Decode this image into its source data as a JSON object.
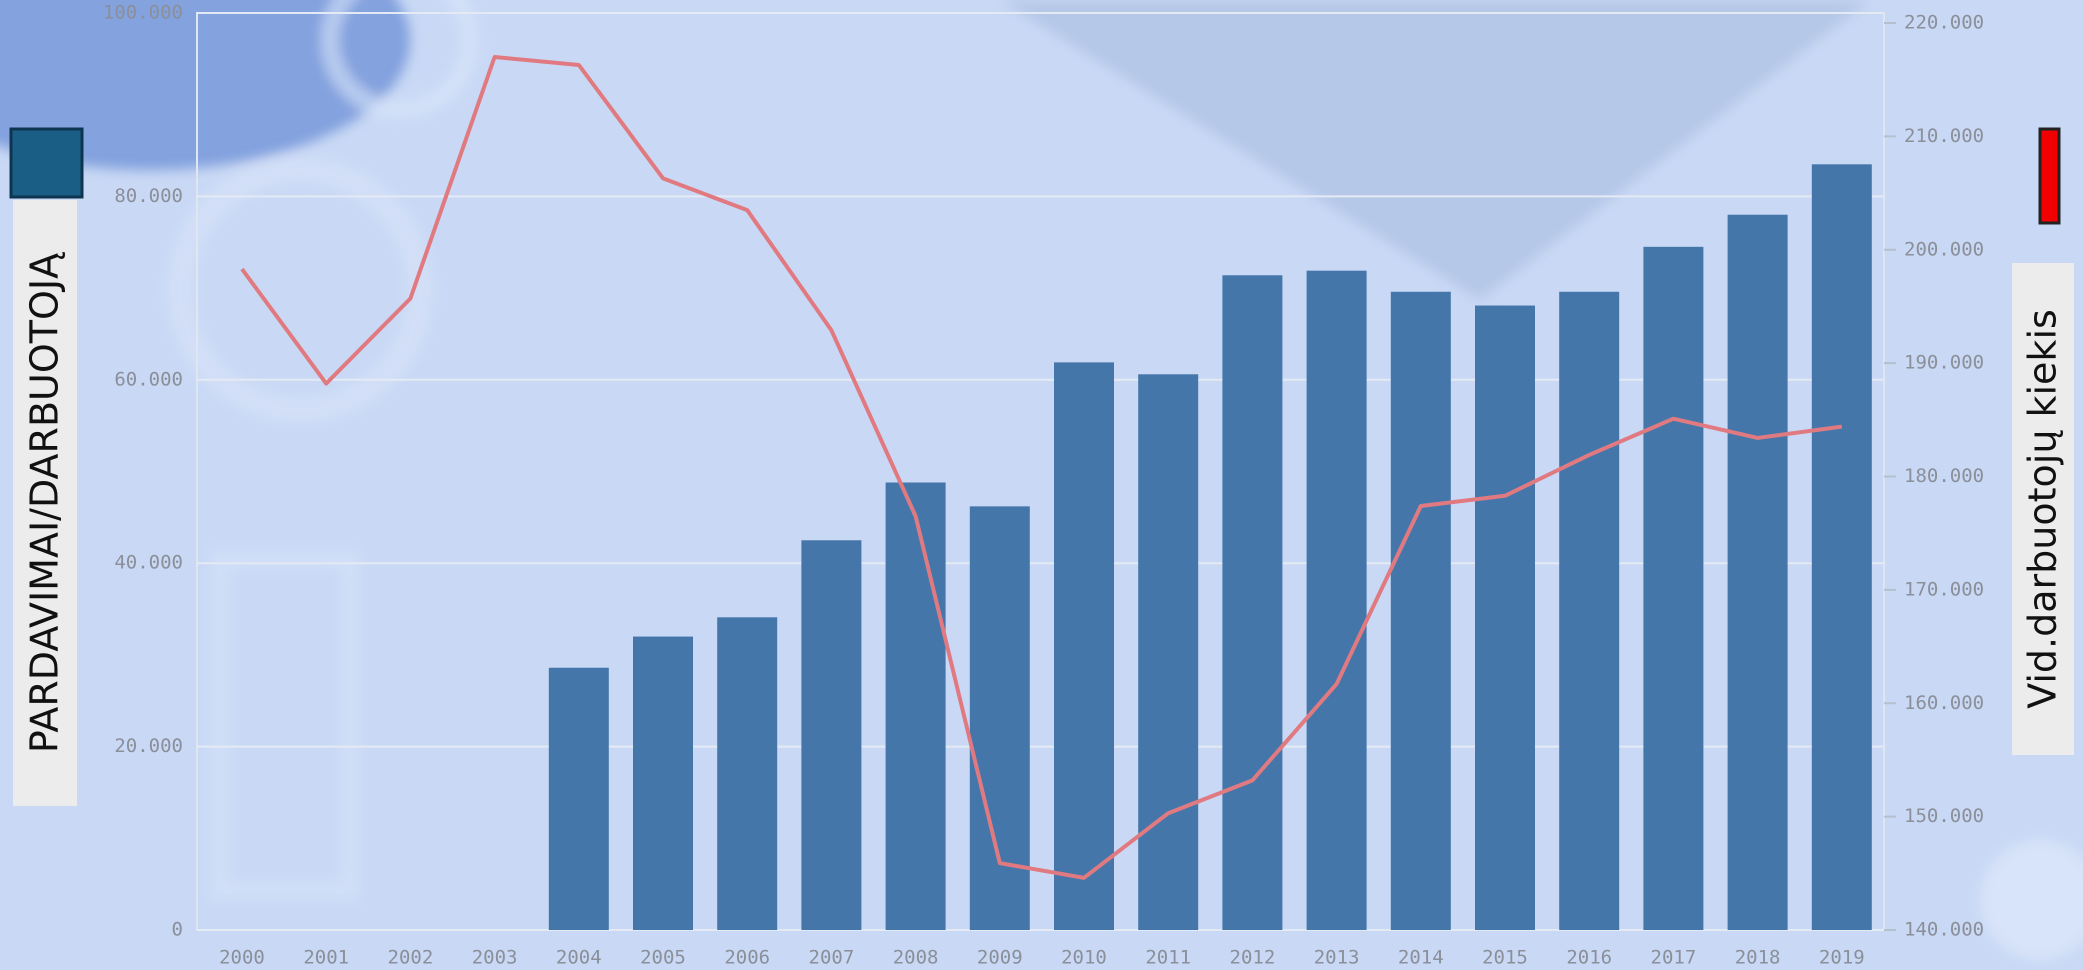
{
  "chart_data": {
    "type": "bar-line",
    "y_label": "PARDAVIMAI/DARBUOTOJĄ",
    "y2_label": "Vid.darbuotojų kiekis",
    "categories": [
      "2000",
      "2001",
      "2002",
      "2003",
      "2004",
      "2005",
      "2006",
      "2007",
      "2008",
      "2009",
      "2010",
      "2011",
      "2012",
      "2013",
      "2014",
      "2015",
      "2016",
      "2017",
      "2018",
      "2019"
    ],
    "series": [
      {
        "type": "bar",
        "color": "#4476aa",
        "values": [
          null,
          null,
          null,
          null,
          28600,
          32000,
          34100,
          42500,
          48800,
          46200,
          61900,
          60600,
          71400,
          71900,
          69600,
          68100,
          69600,
          74500,
          78000,
          83500
        ]
      },
      {
        "type": "line",
        "color": "#e07a80",
        "axis": "y2",
        "values": [
          198300,
          188200,
          195700,
          217000,
          216300,
          206300,
          203500,
          192900,
          176500,
          145900,
          144600,
          150300,
          153200,
          161700,
          177400,
          178300,
          181900,
          185100,
          183400,
          184400
        ]
      }
    ],
    "ylim": [
      0,
      100000
    ],
    "yticks": [
      0,
      {
        "value": 20000,
        "label": "20.000"
      },
      {
        "value": 40000,
        "label": "40.000"
      },
      {
        "value": 60000,
        "label": "60.000"
      },
      {
        "value": 80000,
        "label": "80.000"
      },
      {
        "value": 100000,
        "label": "100.000"
      }
    ],
    "y2lim": [
      140000,
      220000
    ],
    "y2ticks": [
      {
        "value": 140000,
        "label": "140.000"
      },
      {
        "value": 150000,
        "label": "150.000"
      },
      {
        "value": 160000,
        "label": "160.000"
      },
      {
        "value": 170000,
        "label": "170.000"
      },
      {
        "value": 180000,
        "label": "180.000"
      },
      {
        "value": 190000,
        "label": "190.000"
      },
      {
        "value": 200000,
        "label": "200.000"
      },
      {
        "value": 210000,
        "label": "210.000"
      },
      {
        "value": 220000,
        "label": "220.000"
      }
    ],
    "grid": true
  }
}
